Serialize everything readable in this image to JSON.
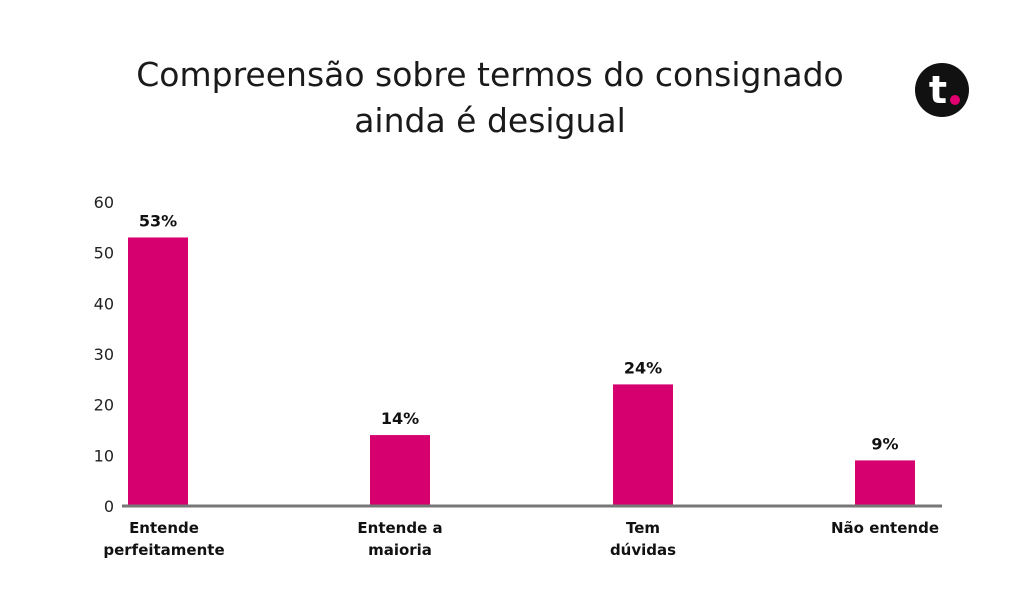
{
  "colors": {
    "bar": "#d6006e",
    "axis": "#777777",
    "logo_bg": "#111111",
    "logo_dot": "#e0006f"
  },
  "logo": {
    "text": "t"
  },
  "chart_data": {
    "type": "bar",
    "title_lines": [
      "Compreensão sobre termos do consignado",
      "ainda é desigual"
    ],
    "categories": [
      [
        "Entende",
        "perfeitamente"
      ],
      [
        "Entende a",
        "maioria"
      ],
      [
        "Tem",
        "dúvidas"
      ],
      [
        "Não entende"
      ]
    ],
    "values": [
      53,
      14,
      24,
      9
    ],
    "data_labels": [
      "53%",
      "14%",
      "24%",
      "9%"
    ],
    "yticks": [
      0,
      10,
      20,
      30,
      40,
      50,
      60
    ],
    "ylim": [
      0,
      60
    ],
    "xlabel": "",
    "ylabel": "",
    "grid": false,
    "legend": "none"
  }
}
